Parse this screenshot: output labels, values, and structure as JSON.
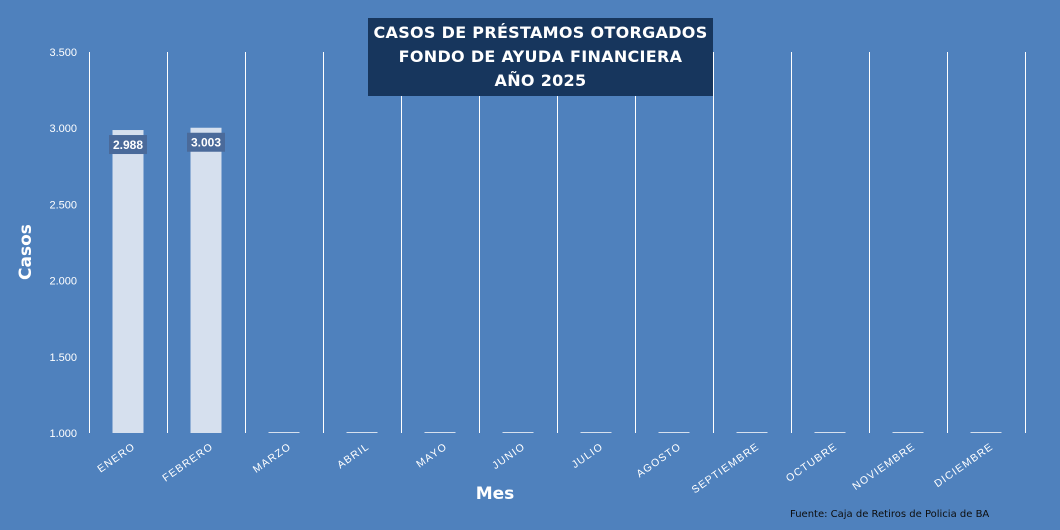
{
  "title": {
    "line1": "CASOS DE PRÉSTAMOS OTORGADOS",
    "line2": "FONDO DE AYUDA FINANCIERA",
    "line3": "AÑO 2025"
  },
  "source": "Fuente: Caja de Retiros de Policia de BA",
  "colors": {
    "background": "#4f81bd",
    "bar": "#d6e0ee",
    "title_box": "#17365d",
    "label_box": "#4a6a9a",
    "gridline": "#ffffff"
  },
  "chart_data": {
    "type": "bar",
    "title": "CASOS DE PRÉSTAMOS OTORGADOS FONDO DE AYUDA FINANCIERA AÑO 2025",
    "xlabel": "Mes",
    "ylabel": "Casos",
    "categories": [
      "ENERO",
      "FEBRERO",
      "MARZO",
      "ABRIL",
      "MAYO",
      "JUNIO",
      "JULIO",
      "AGOSTO",
      "SEPTIEMBRE",
      "OCTUBRE",
      "NOVIEMBRE",
      "DICIEMBRE"
    ],
    "values": [
      2988,
      3003,
      1000,
      1000,
      1000,
      1000,
      1000,
      1000,
      1000,
      1000,
      1000,
      1000
    ],
    "data_labels": [
      "2.988",
      "3.003",
      "",
      "",
      "",
      "",
      "",
      "",
      "",
      "",
      "",
      ""
    ],
    "ylim": [
      1000,
      3500
    ],
    "yticks": [
      1000,
      1500,
      2000,
      2500,
      3000,
      3500
    ],
    "ytick_labels": [
      "1.000",
      "1.500",
      "2.000",
      "2.500",
      "3.000",
      "3.500"
    ],
    "grid": "vertical",
    "legend": "none"
  }
}
